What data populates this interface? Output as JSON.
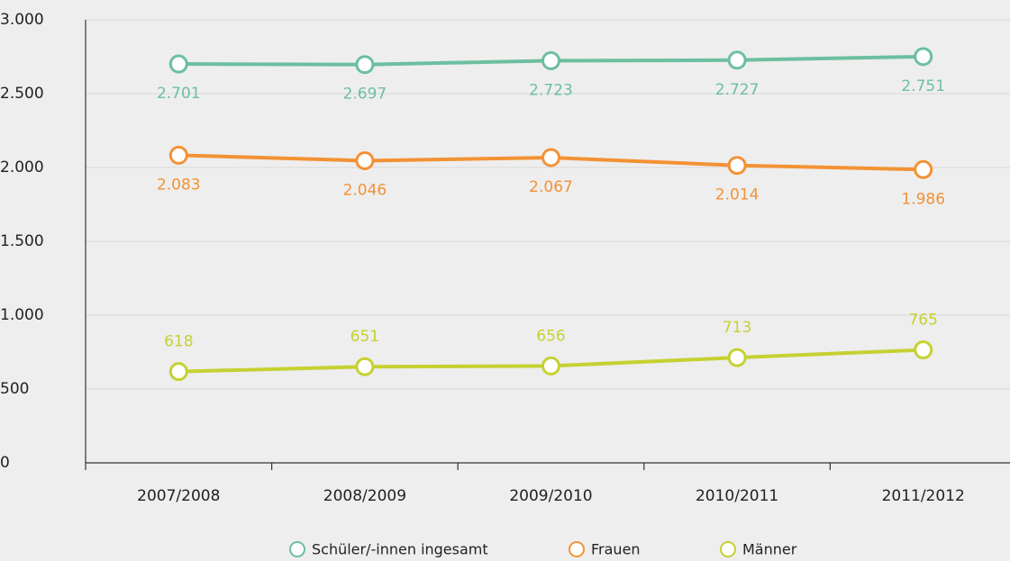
{
  "chart_data": {
    "type": "line",
    "categories": [
      "2007/2008",
      "2008/2009",
      "2009/2010",
      "2010/2011",
      "2011/2012"
    ],
    "series": [
      {
        "name": "Schüler/-innen ingesamt",
        "color": "#6cbf9f",
        "values": [
          2701,
          2697,
          2723,
          2727,
          2751
        ],
        "value_labels": [
          "2.701",
          "2.697",
          "2.723",
          "2.727",
          "2.751"
        ]
      },
      {
        "name": "Frauen",
        "color": "#f39234",
        "values": [
          2083,
          2046,
          2067,
          2014,
          1986
        ],
        "value_labels": [
          "2.083",
          "2.046",
          "2.067",
          "2.014",
          "1.986"
        ]
      },
      {
        "name": "Männer",
        "color": "#c5d131",
        "values": [
          618,
          651,
          656,
          713,
          765
        ],
        "value_labels": [
          "618",
          "651",
          "656",
          "713",
          "765"
        ]
      }
    ],
    "ylim": [
      0,
      3000
    ],
    "yticks": [
      0,
      500,
      {
        "value": 1000,
        "label": "1.000"
      },
      {
        "value": 1500,
        "label": "1.500"
      },
      {
        "value": 2000,
        "label": "2.000"
      },
      {
        "value": 2500,
        "label": "2.500"
      },
      {
        "value": 3000,
        "label": "3.000"
      }
    ],
    "grid": true,
    "legend": "bottom"
  }
}
